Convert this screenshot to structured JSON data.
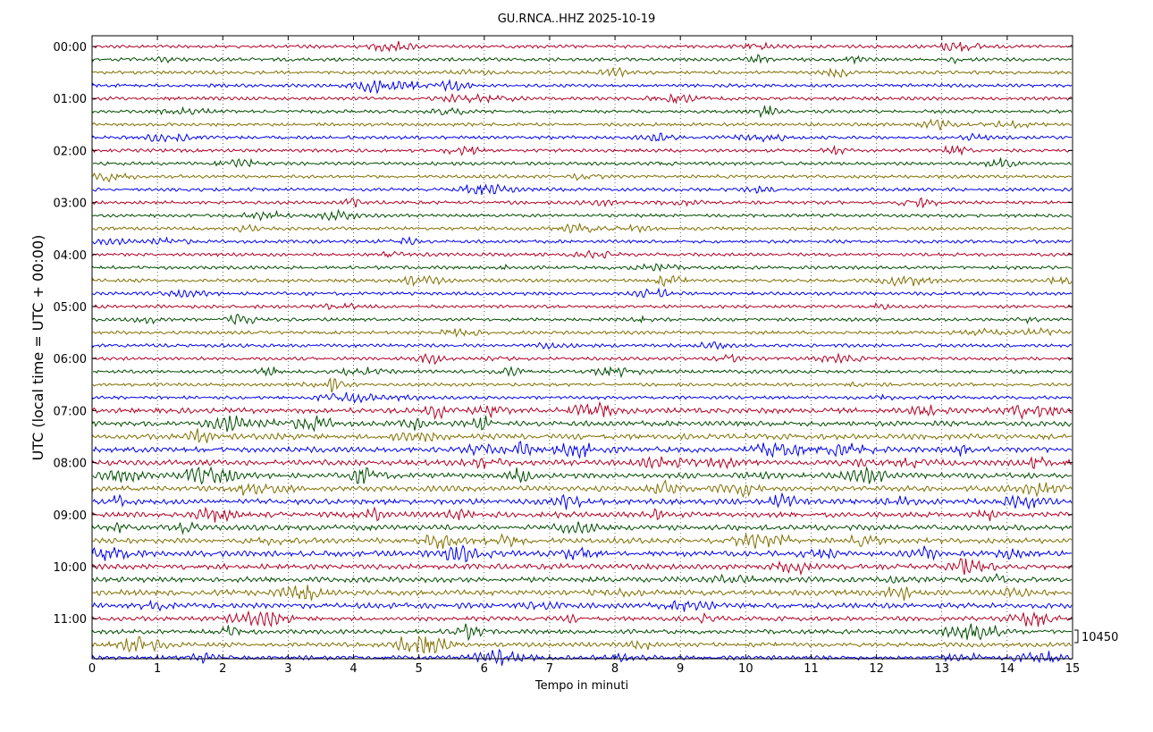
{
  "chart_data": {
    "type": "line",
    "title": "GU.RNCA..HHZ 2025-10-19",
    "xlabel": "Tempo in minuti",
    "ylabel": "UTC (local time = UTC + 00:00)",
    "xlim": [
      0,
      15
    ],
    "x_ticks": [
      "0",
      "1",
      "2",
      "3",
      "4",
      "5",
      "6",
      "7",
      "8",
      "9",
      "10",
      "11",
      "12",
      "13",
      "14",
      "15"
    ],
    "y_ticks": [
      "00:00",
      "01:00",
      "02:00",
      "03:00",
      "04:00",
      "05:00",
      "06:00",
      "07:00",
      "08:00",
      "09:00",
      "10:00",
      "11:00"
    ],
    "traces_per_hour": 4,
    "trace_count": 48,
    "trace_colors": [
      "#b00024",
      "#004d00",
      "#807000",
      "#0000ee"
    ],
    "scale_label": "10450",
    "grid": true,
    "grid_style": "dotted vertical lines at each minute"
  }
}
